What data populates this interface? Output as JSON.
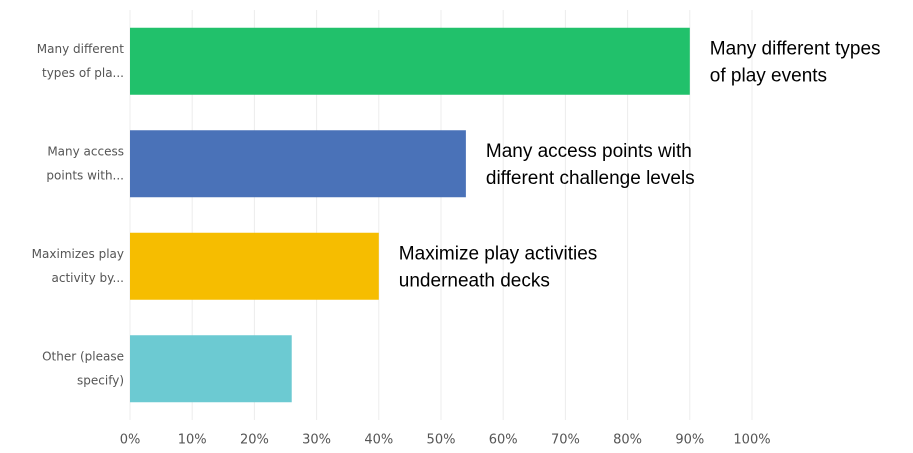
{
  "chart_data": {
    "type": "bar",
    "orientation": "horizontal",
    "categories": [
      [
        "Many different",
        "types of pla..."
      ],
      [
        "Many access",
        "points with..."
      ],
      [
        "Maximizes play",
        "activity by..."
      ],
      [
        "Other (please",
        "specify)"
      ]
    ],
    "values": [
      90,
      54,
      40,
      26
    ],
    "colors": [
      "#21c16b",
      "#4a72b8",
      "#f6bd00",
      "#6ccad2"
    ],
    "annotations": [
      [
        "Many different types",
        "of play events"
      ],
      [
        "Many access points with",
        "different challenge levels"
      ],
      [
        "Maximize play activities",
        "underneath decks"
      ],
      null
    ],
    "xlim": [
      0,
      100
    ],
    "xticks": [
      {
        "value": 0,
        "label": "0%"
      },
      {
        "value": 10,
        "label": "10%"
      },
      {
        "value": 20,
        "label": "20%"
      },
      {
        "value": 30,
        "label": "30%"
      },
      {
        "value": 40,
        "label": "40%"
      },
      {
        "value": 50,
        "label": "50%"
      },
      {
        "value": 60,
        "label": "60%"
      },
      {
        "value": 70,
        "label": "70%"
      },
      {
        "value": 80,
        "label": "80%"
      },
      {
        "value": 90,
        "label": "90%"
      },
      {
        "value": 100,
        "label": "100%"
      }
    ],
    "grid": true
  }
}
